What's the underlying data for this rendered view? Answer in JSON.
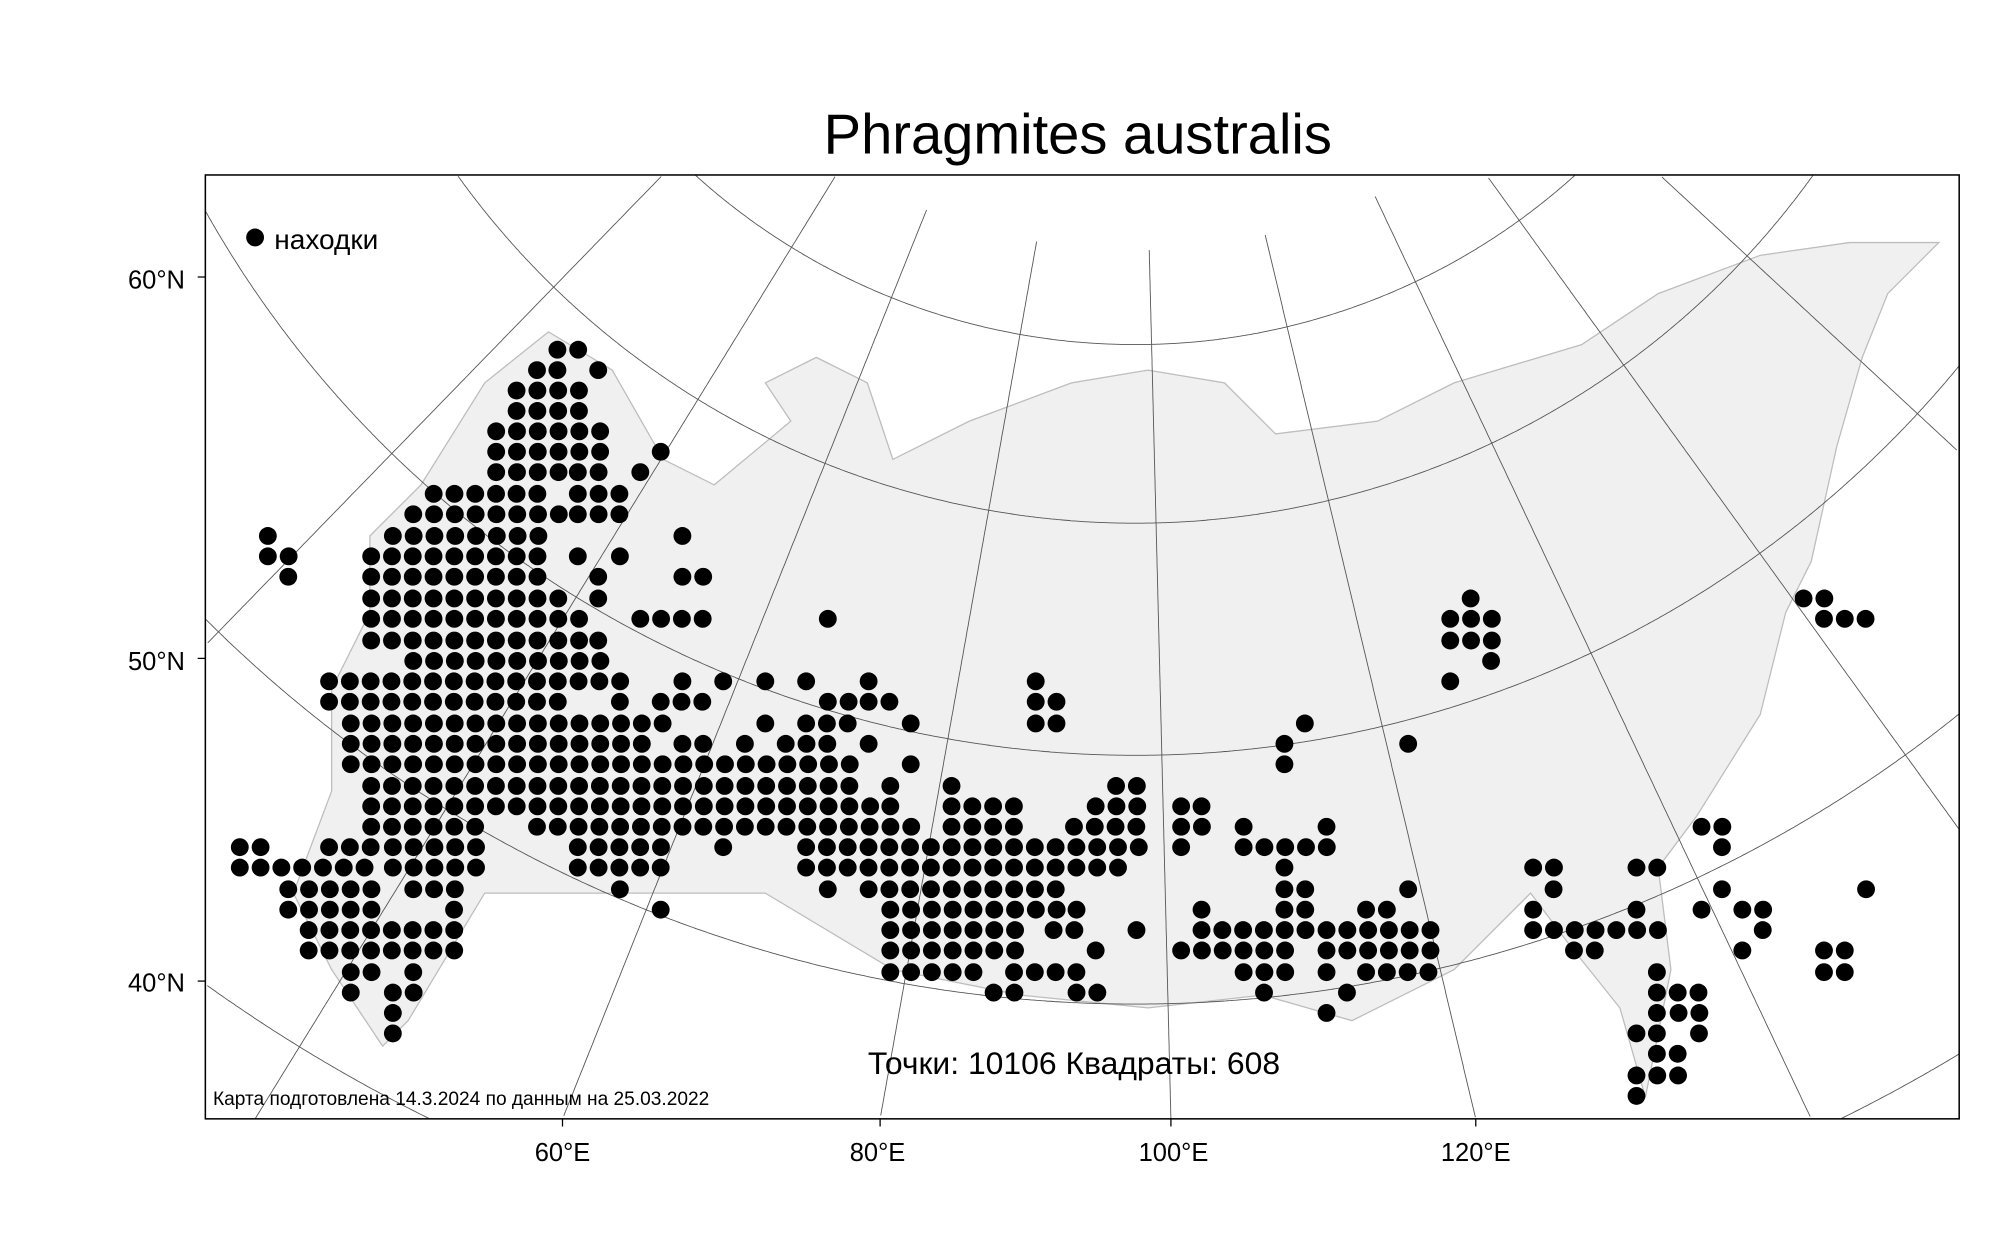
{
  "title": "Phragmites australis",
  "legend": {
    "label": "находки",
    "marker": "filled-circle",
    "color": "#000000"
  },
  "stats": "Точки: 10106 Квадраты: 608",
  "footer_note": "Карта подготовлена 14.3.2024 по данным на 25.03.2022",
  "axes": {
    "lat_labels": [
      "60°N",
      "50°N",
      "40°N"
    ],
    "lon_labels": [
      "60°E",
      "80°E",
      "100°E",
      "120°E"
    ]
  },
  "colors": {
    "land": "#f0f0f0",
    "coast": "#bdbdbd",
    "graticule": "#555555",
    "dots": "#000000"
  }
}
